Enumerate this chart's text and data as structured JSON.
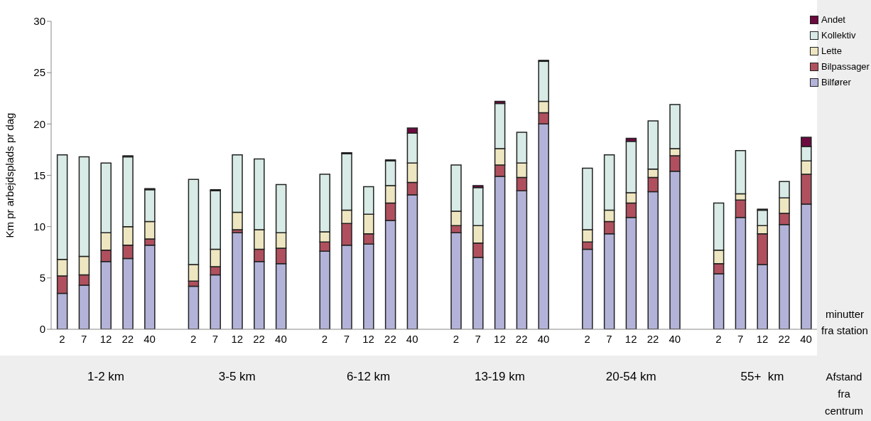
{
  "chart_data": {
    "type": "bar",
    "stacked": true,
    "ylabel": "Km pr arbejdsplads pr dag",
    "xlabel": "minutter fra station",
    "annotations": [
      "1-2 km",
      "3-5 km",
      "6-12 km",
      "13-19 km",
      "20-54 km",
      "55+  km",
      "Afstand fra centrum"
    ],
    "categories": [
      "2",
      "7",
      "12",
      "22",
      "40",
      null,
      "2",
      "7",
      "12",
      "22",
      "40",
      null,
      "2",
      "7",
      "12",
      "22",
      "40",
      null,
      "2",
      "7",
      "12",
      "22",
      "40",
      null,
      "2",
      "7",
      "12",
      "22",
      "40",
      null,
      "2",
      "7",
      "12",
      "22",
      "40"
    ],
    "series": [
      {
        "name": "Bilfører",
        "color": "#b3b3d9",
        "values": [
          3.5,
          4.3,
          6.6,
          6.9,
          8.2,
          null,
          4.2,
          5.3,
          9.4,
          6.6,
          6.4,
          null,
          7.6,
          8.2,
          8.3,
          10.6,
          13.1,
          null,
          9.4,
          7.0,
          14.9,
          13.5,
          20.0,
          null,
          7.8,
          9.3,
          10.9,
          13.4,
          15.4,
          null,
          5.4,
          10.9,
          6.3,
          10.2,
          12.2
        ]
      },
      {
        "name": "Bilpassager",
        "color": "#b0505e",
        "values": [
          1.7,
          1.0,
          1.1,
          1.3,
          0.6,
          null,
          0.5,
          0.8,
          0.3,
          1.2,
          1.5,
          null,
          0.9,
          2.1,
          1.0,
          1.7,
          1.2,
          null,
          0.7,
          1.4,
          1.1,
          1.3,
          1.1,
          null,
          0.7,
          1.2,
          1.4,
          1.4,
          1.5,
          null,
          1.0,
          1.7,
          3.0,
          1.1,
          2.9
        ]
      },
      {
        "name": "Lette",
        "color": "#eee6c0",
        "values": [
          1.6,
          1.8,
          1.7,
          1.8,
          1.7,
          null,
          1.6,
          1.7,
          1.7,
          1.9,
          1.5,
          null,
          1.0,
          1.3,
          1.9,
          1.7,
          1.9,
          null,
          1.4,
          1.7,
          1.6,
          1.4,
          1.1,
          null,
          1.2,
          1.1,
          1.0,
          0.8,
          0.7,
          null,
          1.3,
          0.6,
          0.8,
          1.5,
          1.3
        ]
      },
      {
        "name": "Kollektiv",
        "color": "#d8ebe6",
        "values": [
          10.2,
          9.7,
          6.8,
          6.8,
          3.1,
          null,
          8.3,
          5.7,
          5.6,
          6.9,
          4.7,
          null,
          5.6,
          5.5,
          2.7,
          2.4,
          2.9,
          null,
          4.5,
          3.7,
          4.4,
          3.0,
          3.9,
          null,
          6.0,
          5.4,
          5.0,
          4.7,
          4.3,
          null,
          4.6,
          4.2,
          1.5,
          1.6,
          1.4
        ]
      },
      {
        "name": "Andet",
        "color": "#6b0a3f",
        "values": [
          0,
          0,
          0,
          0.1,
          0.1,
          null,
          0,
          0.1,
          0,
          0,
          0,
          null,
          0,
          0.1,
          0,
          0.1,
          0.5,
          null,
          0,
          0.2,
          0.2,
          0,
          0.1,
          null,
          0,
          0,
          0.3,
          0,
          0,
          null,
          0,
          0,
          0.1,
          0,
          0.9
        ]
      }
    ],
    "ylim": [
      0,
      30
    ],
    "yticks": [
      0,
      5,
      10,
      15,
      20,
      25,
      30
    ],
    "legend": "top right"
  }
}
